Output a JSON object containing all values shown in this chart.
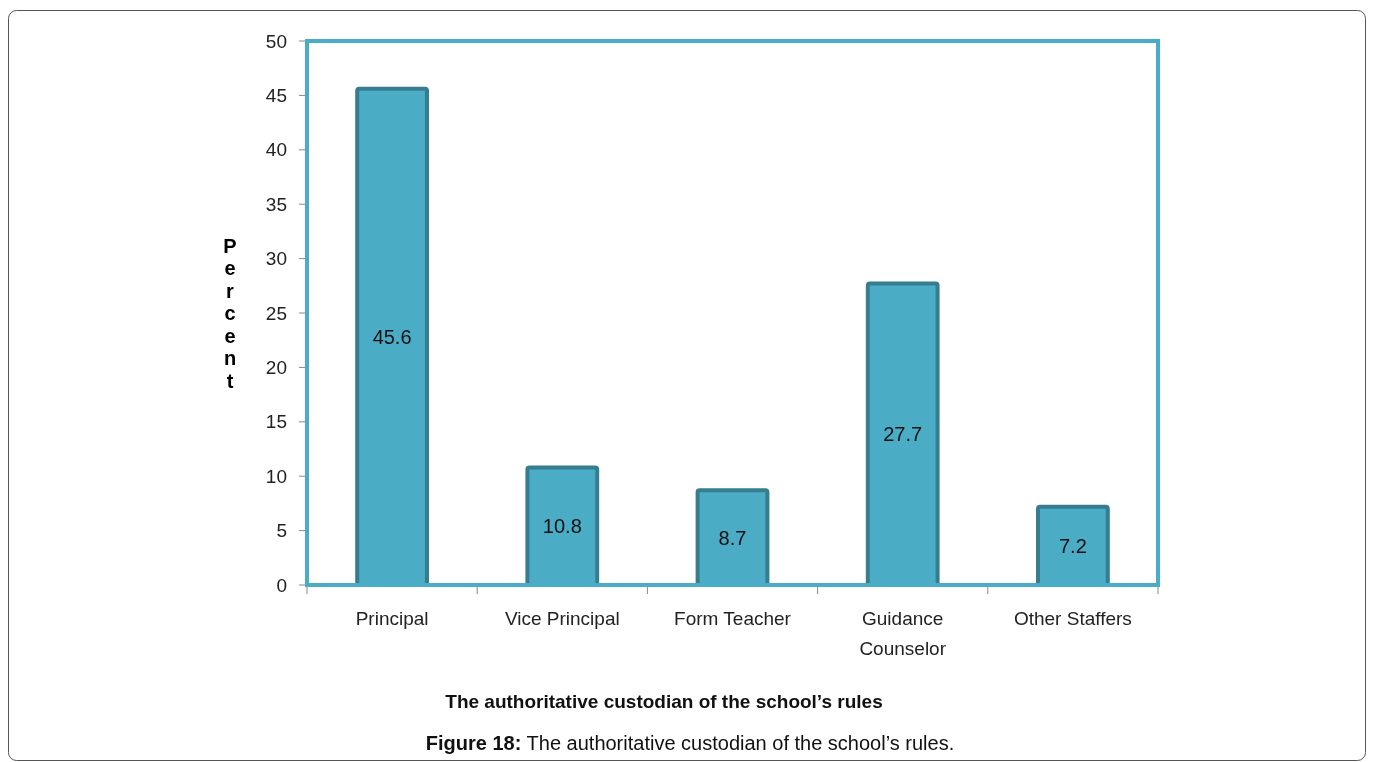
{
  "chart_data": {
    "type": "bar",
    "xlabel": "The authoritative custodian of the school’s rules",
    "ylabel": "Percent",
    "categories": [
      "Principal",
      "Vice Principal",
      "Form Teacher",
      "Guidance Counselor",
      "Other Staffers"
    ],
    "values": [
      45.6,
      10.8,
      8.7,
      27.7,
      7.2
    ],
    "color": "#4bacc6",
    "ylim": [
      0,
      50
    ],
    "yticks": [
      0,
      5,
      10,
      15,
      20,
      25,
      30,
      35,
      40,
      45,
      50
    ],
    "grid": false,
    "data_labels": true,
    "annotations": [
      "Figure 18: The authoritative custodian of the school’s rules."
    ]
  }
}
